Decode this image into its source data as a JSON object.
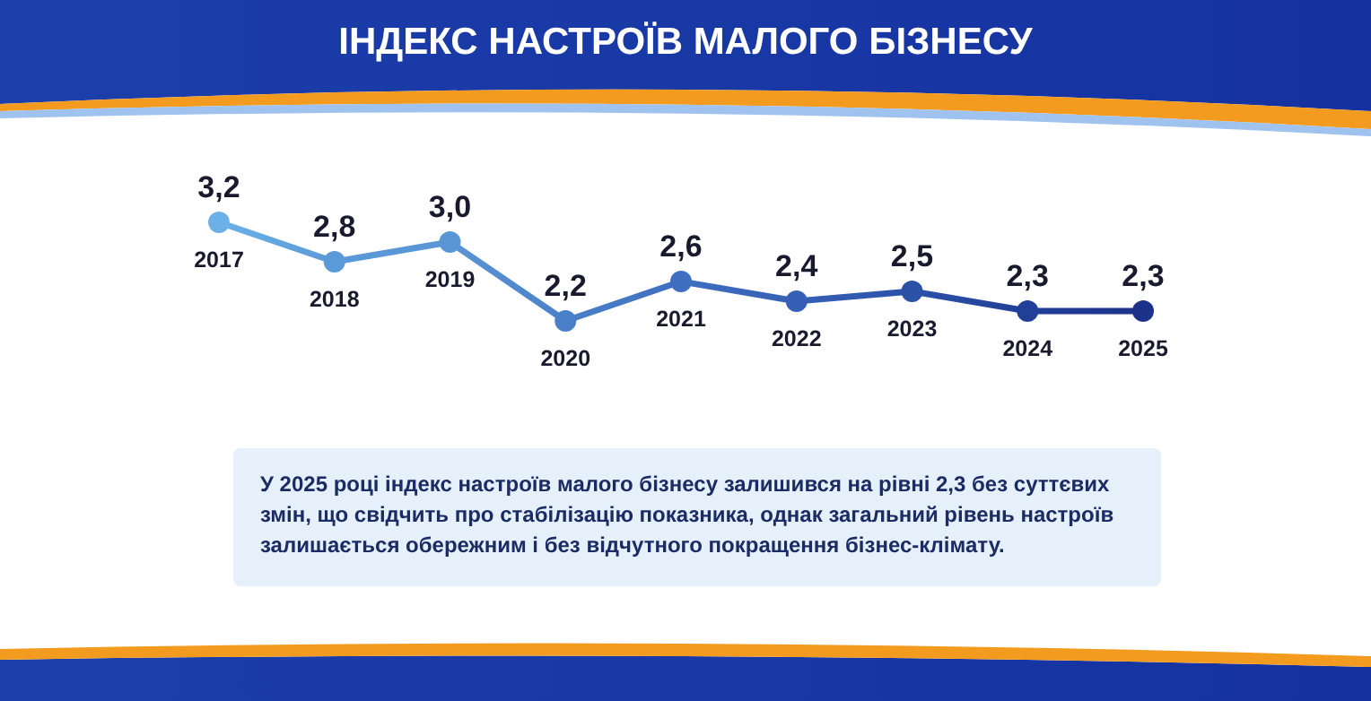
{
  "chart_data": {
    "type": "line",
    "title": "ІНДЕКС НАСТРОЇВ МАЛОГО БІЗНЕСУ",
    "categories": [
      "2017",
      "2018",
      "2019",
      "2020",
      "2021",
      "2022",
      "2023",
      "2024",
      "2025"
    ],
    "series": [
      {
        "values": [
          3.2,
          2.8,
          3.0,
          2.2,
          2.6,
          2.4,
          2.5,
          2.3,
          2.3
        ],
        "value_labels": [
          "3,2",
          "2,8",
          "3,0",
          "2,2",
          "2,6",
          "2,4",
          "2,5",
          "2,3",
          "2,3"
        ],
        "colors": [
          "#6cb0e8",
          "#5a9ad8",
          "#5a95d5",
          "#4a80c8",
          "#3f6fc0",
          "#3560b5",
          "#2c52a8",
          "#223f98",
          "#1c318a"
        ]
      }
    ],
    "marker": "circle",
    "annotations": [
      "У 2025 році індекс настроїв малого бізнесу залишився на рівні 2,3 без суттєвих змін, що свідчить про стабілізацію показника, однак загальний рівень настроїв залишається обережним і без відчутного покращення бізнес-клімату."
    ]
  }
}
